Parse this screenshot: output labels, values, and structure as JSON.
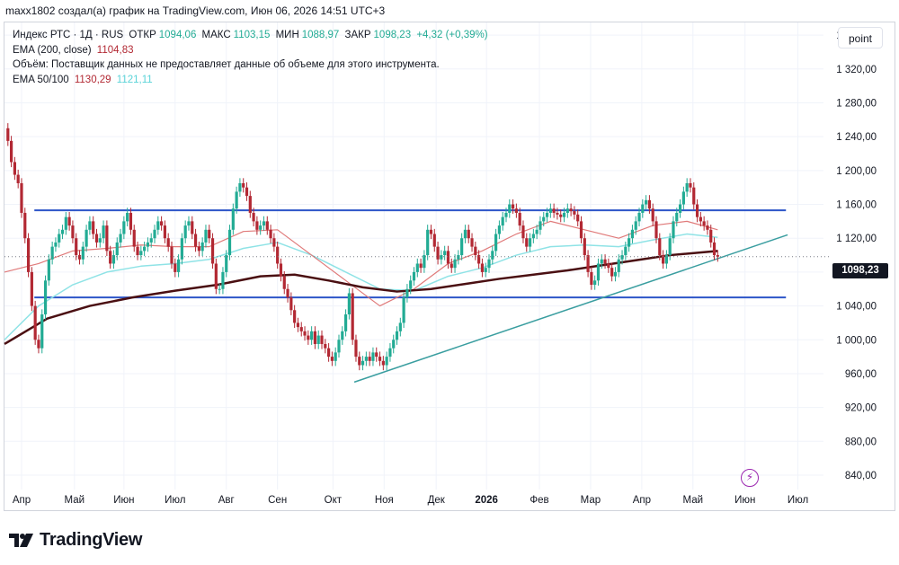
{
  "attribution": "maxx1802 создал(а) график на TradingView.com, Июн 06, 2026 14:51 UTC+3",
  "legend": {
    "symbol": "Индекс РТС · 1Д · RUS",
    "open_label": "ОТКР",
    "open_value": "1094,06",
    "high_label": "МАКС",
    "high_value": "1103,15",
    "low_label": "МИН",
    "low_value": "1088,97",
    "close_label": "ЗАКР",
    "close_value": "1098,23",
    "change": "+4,32 (+0,39%)",
    "ema200_label": "EMA (200, close)",
    "ema200_value": "1104,83",
    "volume_note": "Объём: Поставщик данных не предоставляет данные об объеме для этого инструмента.",
    "ema50_100_label": "EMA 50/100",
    "ema50_value": "1130,29",
    "ema100_value": "1121,11"
  },
  "scale_mode": "point",
  "last_price": "1098,23",
  "footer_brand": "TradingView",
  "colors": {
    "up": "#22ab94",
    "down": "#b22833",
    "ema200": "#4a0f12",
    "ema50": "#e07a7a",
    "ema100": "#8fe3e6",
    "hline": "#2d55c8",
    "trend": "#3a9ea0",
    "grid": "#f0f3fa",
    "axis_text": "#131722",
    "last_price_line": "#787b86"
  },
  "chart_data": {
    "type": "candlestick",
    "title": "Индекс РТС · 1Д · RUS",
    "y_ticks": [
      1360,
      1320,
      1280,
      1240,
      1200,
      1160,
      1120,
      1080,
      1040,
      1000,
      960,
      920,
      880,
      840
    ],
    "y_tick_labels": [
      "1 360,00",
      "1 320,00",
      "1 280,00",
      "1 240,00",
      "1 200,00",
      "1 160,00",
      "1 120,00",
      "1 080,00",
      "1 040,00",
      "1 000,00",
      "960,00",
      "920,00",
      "880,00",
      "840,00"
    ],
    "ylim": [
      823,
      1375
    ],
    "x_labels": [
      "Апр",
      "Май",
      "Июн",
      "Июл",
      "Авг",
      "Сен",
      "Окт",
      "Ноя",
      "Дек",
      "2026",
      "Фев",
      "Мар",
      "Апр",
      "Май",
      "Июн",
      "Июл"
    ],
    "x_label_days": [
      20,
      82,
      140,
      200,
      260,
      320,
      385,
      445,
      506,
      565,
      627,
      687,
      747,
      807,
      868,
      930
    ],
    "bold_x_label": "2026",
    "xlim": [
      0,
      960
    ],
    "last_close": 1098.23,
    "closes": [
      [
        0,
        1250
      ],
      [
        4,
        1235
      ],
      [
        8,
        1210
      ],
      [
        12,
        1195
      ],
      [
        16,
        1185
      ],
      [
        20,
        1150
      ],
      [
        24,
        1120
      ],
      [
        28,
        1080
      ],
      [
        32,
        1040
      ],
      [
        36,
        1000
      ],
      [
        40,
        990
      ],
      [
        44,
        1030
      ],
      [
        48,
        1070
      ],
      [
        52,
        1095
      ],
      [
        56,
        1110
      ],
      [
        60,
        1115
      ],
      [
        64,
        1125
      ],
      [
        68,
        1130
      ],
      [
        72,
        1145
      ],
      [
        76,
        1135
      ],
      [
        80,
        1120
      ],
      [
        84,
        1100
      ],
      [
        88,
        1095
      ],
      [
        92,
        1110
      ],
      [
        96,
        1130
      ],
      [
        100,
        1140
      ],
      [
        104,
        1125
      ],
      [
        108,
        1115
      ],
      [
        112,
        1120
      ],
      [
        116,
        1135
      ],
      [
        120,
        1105
      ],
      [
        124,
        1090
      ],
      [
        128,
        1100
      ],
      [
        132,
        1115
      ],
      [
        136,
        1125
      ],
      [
        140,
        1140
      ],
      [
        144,
        1150
      ],
      [
        148,
        1130
      ],
      [
        152,
        1110
      ],
      [
        156,
        1100
      ],
      [
        160,
        1105
      ],
      [
        164,
        1110
      ],
      [
        168,
        1115
      ],
      [
        172,
        1120
      ],
      [
        176,
        1130
      ],
      [
        180,
        1140
      ],
      [
        184,
        1135
      ],
      [
        188,
        1120
      ],
      [
        192,
        1110
      ],
      [
        196,
        1090
      ],
      [
        200,
        1080
      ],
      [
        204,
        1095
      ],
      [
        208,
        1120
      ],
      [
        212,
        1135
      ],
      [
        216,
        1140
      ],
      [
        220,
        1125
      ],
      [
        224,
        1110
      ],
      [
        228,
        1105
      ],
      [
        232,
        1115
      ],
      [
        236,
        1130
      ],
      [
        240,
        1120
      ],
      [
        244,
        1090
      ],
      [
        248,
        1060
      ],
      [
        252,
        1060
      ],
      [
        256,
        1080
      ],
      [
        260,
        1100
      ],
      [
        264,
        1130
      ],
      [
        268,
        1155
      ],
      [
        272,
        1175
      ],
      [
        276,
        1185
      ],
      [
        280,
        1180
      ],
      [
        284,
        1170
      ],
      [
        288,
        1150
      ],
      [
        292,
        1140
      ],
      [
        296,
        1130
      ],
      [
        300,
        1135
      ],
      [
        304,
        1140
      ],
      [
        308,
        1130
      ],
      [
        312,
        1120
      ],
      [
        316,
        1110
      ],
      [
        320,
        1090
      ],
      [
        324,
        1075
      ],
      [
        328,
        1060
      ],
      [
        332,
        1050
      ],
      [
        336,
        1035
      ],
      [
        340,
        1020
      ],
      [
        344,
        1015
      ],
      [
        348,
        1010
      ],
      [
        352,
        1005
      ],
      [
        356,
        1000
      ],
      [
        360,
        1010
      ],
      [
        364,
        995
      ],
      [
        368,
        1005
      ],
      [
        372,
        995
      ],
      [
        376,
        990
      ],
      [
        380,
        980
      ],
      [
        384,
        975
      ],
      [
        388,
        985
      ],
      [
        392,
        1000
      ],
      [
        396,
        1010
      ],
      [
        400,
        1030
      ],
      [
        404,
        1055
      ],
      [
        408,
        1000
      ],
      [
        412,
        980
      ],
      [
        416,
        970
      ],
      [
        420,
        975
      ],
      [
        424,
        980
      ],
      [
        428,
        975
      ],
      [
        432,
        985
      ],
      [
        436,
        980
      ],
      [
        440,
        975
      ],
      [
        444,
        970
      ],
      [
        448,
        980
      ],
      [
        452,
        990
      ],
      [
        456,
        1000
      ],
      [
        460,
        1010
      ],
      [
        464,
        1020
      ],
      [
        468,
        1050
      ],
      [
        472,
        1060
      ],
      [
        476,
        1070
      ],
      [
        480,
        1080
      ],
      [
        484,
        1090
      ],
      [
        488,
        1085
      ],
      [
        492,
        1100
      ],
      [
        496,
        1130
      ],
      [
        500,
        1125
      ],
      [
        504,
        1110
      ],
      [
        508,
        1095
      ],
      [
        512,
        1100
      ],
      [
        516,
        1105
      ],
      [
        520,
        1090
      ],
      [
        524,
        1085
      ],
      [
        528,
        1095
      ],
      [
        532,
        1100
      ],
      [
        536,
        1120
      ],
      [
        540,
        1130
      ],
      [
        544,
        1120
      ],
      [
        548,
        1110
      ],
      [
        552,
        1100
      ],
      [
        556,
        1090
      ],
      [
        560,
        1080
      ],
      [
        564,
        1085
      ],
      [
        568,
        1095
      ],
      [
        572,
        1105
      ],
      [
        576,
        1125
      ],
      [
        580,
        1135
      ],
      [
        584,
        1145
      ],
      [
        588,
        1150
      ],
      [
        592,
        1160
      ],
      [
        596,
        1155
      ],
      [
        600,
        1150
      ],
      [
        604,
        1135
      ],
      [
        608,
        1120
      ],
      [
        612,
        1110
      ],
      [
        616,
        1120
      ],
      [
        620,
        1125
      ],
      [
        624,
        1130
      ],
      [
        628,
        1140
      ],
      [
        632,
        1145
      ],
      [
        636,
        1150
      ],
      [
        640,
        1155
      ],
      [
        644,
        1150
      ],
      [
        648,
        1148
      ],
      [
        652,
        1145
      ],
      [
        656,
        1150
      ],
      [
        660,
        1155
      ],
      [
        664,
        1152
      ],
      [
        668,
        1148
      ],
      [
        672,
        1140
      ],
      [
        676,
        1120
      ],
      [
        680,
        1100
      ],
      [
        684,
        1080
      ],
      [
        688,
        1065
      ],
      [
        692,
        1070
      ],
      [
        696,
        1090
      ],
      [
        700,
        1095
      ],
      [
        704,
        1090
      ],
      [
        708,
        1085
      ],
      [
        712,
        1075
      ],
      [
        716,
        1080
      ],
      [
        720,
        1095
      ],
      [
        724,
        1100
      ],
      [
        728,
        1110
      ],
      [
        732,
        1120
      ],
      [
        736,
        1130
      ],
      [
        740,
        1140
      ],
      [
        744,
        1150
      ],
      [
        748,
        1160
      ],
      [
        752,
        1165
      ],
      [
        756,
        1155
      ],
      [
        760,
        1140
      ],
      [
        764,
        1120
      ],
      [
        768,
        1100
      ],
      [
        772,
        1090
      ],
      [
        776,
        1100
      ],
      [
        780,
        1120
      ],
      [
        784,
        1140
      ],
      [
        788,
        1150
      ],
      [
        792,
        1160
      ],
      [
        796,
        1175
      ],
      [
        800,
        1185
      ],
      [
        804,
        1180
      ],
      [
        808,
        1160
      ],
      [
        812,
        1145
      ],
      [
        816,
        1140
      ],
      [
        820,
        1135
      ],
      [
        824,
        1130
      ],
      [
        828,
        1115
      ],
      [
        832,
        1100
      ],
      [
        836,
        1098.23
      ]
    ],
    "ema200": [
      [
        0,
        995
      ],
      [
        50,
        1025
      ],
      [
        100,
        1040
      ],
      [
        150,
        1050
      ],
      [
        200,
        1058
      ],
      [
        250,
        1065
      ],
      [
        300,
        1075
      ],
      [
        340,
        1077
      ],
      [
        380,
        1070
      ],
      [
        420,
        1062
      ],
      [
        460,
        1057
      ],
      [
        500,
        1060
      ],
      [
        540,
        1066
      ],
      [
        580,
        1072
      ],
      [
        620,
        1077
      ],
      [
        660,
        1082
      ],
      [
        700,
        1088
      ],
      [
        740,
        1094
      ],
      [
        780,
        1100
      ],
      [
        836,
        1105
      ]
    ],
    "ema50": [
      [
        0,
        1080
      ],
      [
        40,
        1090
      ],
      [
        80,
        1105
      ],
      [
        120,
        1108
      ],
      [
        160,
        1112
      ],
      [
        200,
        1110
      ],
      [
        240,
        1110
      ],
      [
        280,
        1128
      ],
      [
        320,
        1130
      ],
      [
        360,
        1100
      ],
      [
        400,
        1070
      ],
      [
        440,
        1040
      ],
      [
        480,
        1060
      ],
      [
        520,
        1090
      ],
      [
        560,
        1105
      ],
      [
        600,
        1125
      ],
      [
        640,
        1140
      ],
      [
        680,
        1130
      ],
      [
        720,
        1120
      ],
      [
        760,
        1135
      ],
      [
        800,
        1140
      ],
      [
        836,
        1130
      ]
    ],
    "ema100": [
      [
        0,
        1000
      ],
      [
        40,
        1040
      ],
      [
        80,
        1065
      ],
      [
        120,
        1080
      ],
      [
        160,
        1087
      ],
      [
        200,
        1090
      ],
      [
        240,
        1095
      ],
      [
        280,
        1108
      ],
      [
        320,
        1115
      ],
      [
        360,
        1100
      ],
      [
        400,
        1080
      ],
      [
        440,
        1060
      ],
      [
        480,
        1058
      ],
      [
        520,
        1075
      ],
      [
        560,
        1085
      ],
      [
        600,
        1100
      ],
      [
        640,
        1110
      ],
      [
        680,
        1112
      ],
      [
        720,
        1110
      ],
      [
        760,
        1118
      ],
      [
        800,
        1125
      ],
      [
        836,
        1121
      ]
    ],
    "hlines": [
      1153,
      1050
    ],
    "hline_span": [
      35,
      916
    ],
    "trendline": [
      [
        410,
        950
      ],
      [
        918,
        1124
      ]
    ]
  }
}
